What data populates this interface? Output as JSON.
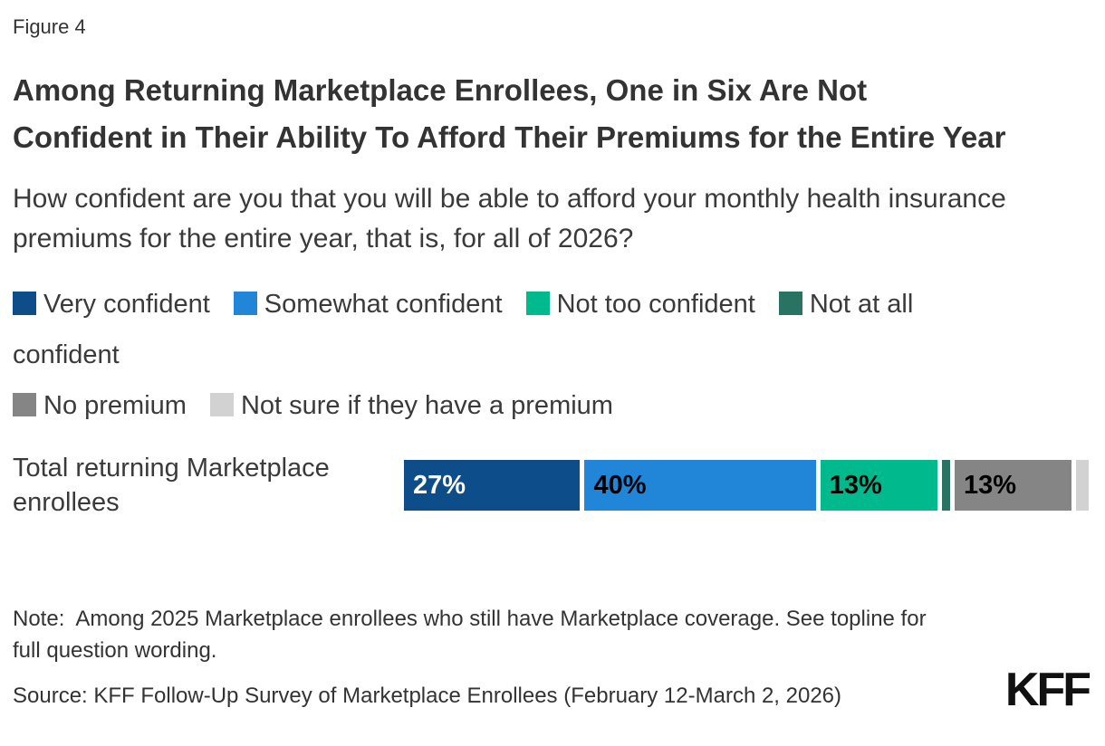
{
  "figure_label": "Figure 4",
  "title": "Among Returning Marketplace Enrollees, One in Six Are Not Confident in Their Ability To Afford Their Premiums for the Entire Year",
  "subtitle": "How confident are you that you will be able to afford your monthly health insurance premiums for the entire year, that is, for all of 2026?",
  "note": "Note:  Among 2025 Marketplace enrollees who still have Marketplace coverage. See topline for full question wording.",
  "source": "Source: KFF Follow-Up Survey of Marketplace Enrollees (February 12-March 2, 2026)",
  "logo_text": "KFF",
  "chart_data": {
    "type": "bar",
    "orientation": "horizontal",
    "stacked": true,
    "grid": false,
    "axes_visible": false,
    "legend_position": "top",
    "value_suffix": "%",
    "categories": [
      "Total returning Marketplace enrollees"
    ],
    "series": [
      {
        "name": "Very confident",
        "color": "#0D4D8A",
        "values": [
          27
        ],
        "label_visible": true,
        "label_color": "#ffffff"
      },
      {
        "name": "Somewhat confident",
        "color": "#2185D8",
        "values": [
          40
        ],
        "label_visible": true,
        "label_color": "#000000"
      },
      {
        "name": "Not too confident",
        "color": "#00B98C",
        "values": [
          13
        ],
        "label_visible": true,
        "label_color": "#000000"
      },
      {
        "name": "Not at all confident",
        "color": "#287362",
        "values": [
          2
        ],
        "label_visible": false,
        "label_color": "#000000"
      },
      {
        "name": "No premium",
        "color": "#858585",
        "values": [
          13
        ],
        "label_visible": true,
        "label_color": "#000000"
      },
      {
        "name": "Not sure if they have a premium",
        "color": "#D2D2D2",
        "values": [
          3
        ],
        "label_visible": false,
        "label_color": "#000000"
      }
    ],
    "legend_groups": [
      [
        0,
        1,
        2,
        3
      ],
      [
        4,
        5
      ]
    ]
  }
}
